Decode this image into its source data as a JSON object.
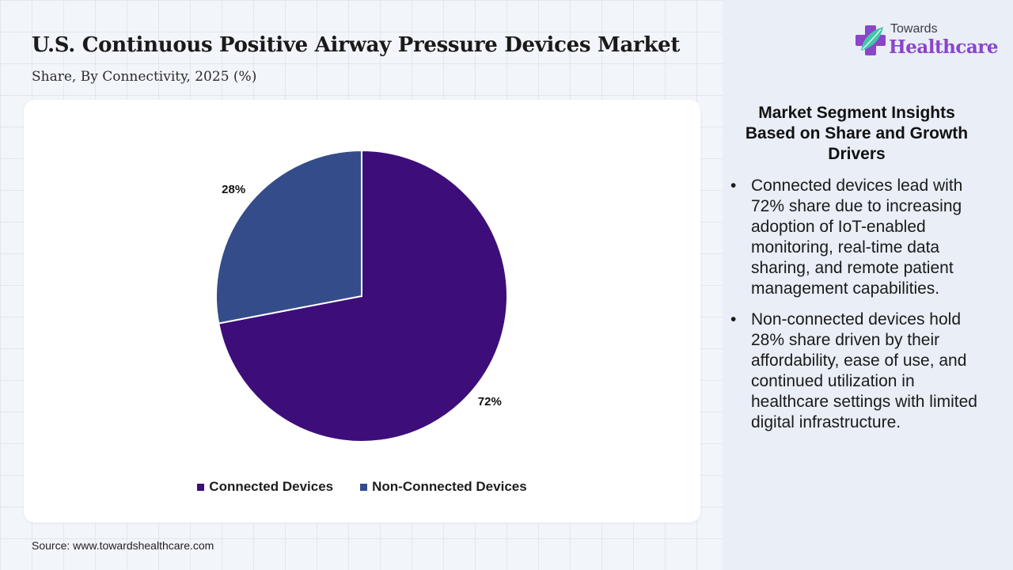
{
  "title": "U.S. Continuous Positive Airway Pressure Devices Market",
  "subtitle": "Share, By Connectivity, 2025 (%)",
  "source": "Source: www.towardshealthcare.com",
  "logo": {
    "small": "Towards",
    "big": "Healthcare",
    "icon": "medical-cross-leaf-icon"
  },
  "insights": {
    "title": "Market Segment Insights Based on Share and Growth Drivers",
    "bullets": [
      "Connected devices lead with 72% share due to increasing adoption of IoT-enabled monitoring, real-time data sharing, and remote patient management capabilities.",
      "Non-connected devices hold 28% share driven by their affordability, ease of use, and continued utilization in healthcare settings with limited digital infrastructure."
    ]
  },
  "chart_data": {
    "type": "pie",
    "title": "U.S. Continuous Positive Airway Pressure Devices Market",
    "subtitle": "Share, By Connectivity, 2025 (%)",
    "categories": [
      "Connected Devices",
      "Non-Connected Devices"
    ],
    "values": [
      72,
      28
    ],
    "data_labels": [
      "72%",
      "28%"
    ],
    "colors": [
      "#3d0e7a",
      "#344d8a"
    ],
    "start_angle": "12 o'clock",
    "direction": "clockwise",
    "legend_position": "bottom"
  }
}
